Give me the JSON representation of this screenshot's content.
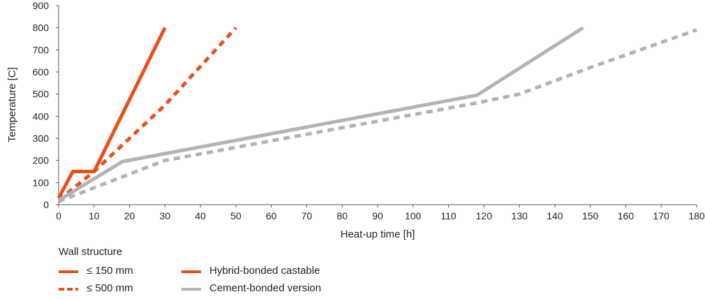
{
  "chart_data": {
    "type": "line",
    "xlabel": "Heat-up time [h]",
    "ylabel": "Temperature [C]",
    "xlim": [
      0,
      180
    ],
    "ylim": [
      0,
      900
    ],
    "xticks": [
      "0",
      "10",
      "20",
      "30",
      "40",
      "50",
      "60",
      "70",
      "80",
      "90",
      "100",
      "110",
      "120",
      "130",
      "140",
      "150",
      "160",
      "170",
      "180"
    ],
    "yticks": [
      "0",
      "100",
      "200",
      "300",
      "400",
      "500",
      "600",
      "700",
      "800",
      "900"
    ],
    "grid": false,
    "legend_placement": "bottom-left",
    "colors": {
      "hybrid": "#e8501a",
      "cement": "#b3b3b3"
    },
    "series": [
      {
        "material": "Hybrid-bonded castable",
        "wall": "≤ 150 mm",
        "dash": "solid",
        "color": "#e8501a",
        "x": [
          0,
          4,
          10,
          30
        ],
        "y": [
          30,
          150,
          150,
          800
        ]
      },
      {
        "material": "Hybrid-bonded castable",
        "wall": "≤ 500 mm",
        "dash": "dashed",
        "color": "#e8501a",
        "x": [
          0,
          10,
          30,
          50
        ],
        "y": [
          20,
          150,
          450,
          800
        ]
      },
      {
        "material": "Cement-bonded version",
        "wall": "≤ 150 mm",
        "dash": "solid",
        "color": "#b3b3b3",
        "x": [
          0,
          18,
          118,
          148
        ],
        "y": [
          20,
          195,
          495,
          800
        ]
      },
      {
        "material": "Cement-bonded version",
        "wall": "≤ 500 mm",
        "dash": "dashed",
        "color": "#b3b3b3",
        "x": [
          0,
          30,
          118,
          130,
          150,
          180
        ],
        "y": [
          15,
          200,
          460,
          500,
          620,
          790
        ]
      }
    ]
  },
  "legend": {
    "title": "Wall structure",
    "items": [
      {
        "label": "≤ 150 mm",
        "style": "solid",
        "color": "#e8501a"
      },
      {
        "label": "≤ 500 mm",
        "style": "dashed",
        "color": "#e8501a"
      },
      {
        "label": "Hybrid-bonded castable",
        "style": "solid",
        "color": "#e8501a"
      },
      {
        "label": "Cement-bonded version",
        "style": "solid",
        "color": "#b3b3b3"
      }
    ]
  }
}
